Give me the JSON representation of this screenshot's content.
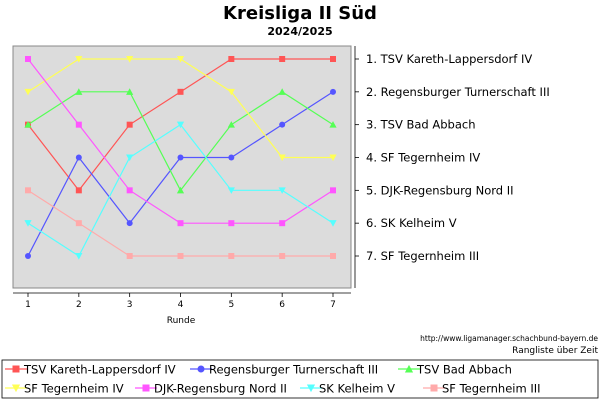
{
  "chart_data": {
    "type": "line",
    "title": "Kreisliga II Süd",
    "subtitle": "2024/2025",
    "xlabel": "Runde",
    "ylabel": "",
    "x": [
      1,
      2,
      3,
      4,
      5,
      6,
      7
    ],
    "ylim": [
      1,
      7
    ],
    "y_inverted": true,
    "grid": false,
    "right_axis_labels": [
      "1. TSV Kareth-Lappersdorf IV",
      "2. Regensburger Turnerschaft III",
      "3. TSV Bad Abbach",
      "4. SF Tegernheim IV",
      "5. DJK-Regensburg Nord II",
      "6. SK Kelheim V",
      "7. SF Tegernheim III"
    ],
    "source_url": "http://www.ligamanager.schachbund-bayern.de",
    "caption": "Rangliste über Zeit",
    "legend_position": "bottom",
    "series": [
      {
        "name": "TSV Kareth-Lappersdorf IV",
        "values": [
          3,
          5,
          3,
          2,
          1,
          1,
          1
        ],
        "color": "#ff5555",
        "marker": "square"
      },
      {
        "name": "Regensburger Turnerschaft III",
        "values": [
          7,
          4,
          6,
          4,
          4,
          3,
          2
        ],
        "color": "#5555ff",
        "marker": "circle"
      },
      {
        "name": "TSV Bad Abbach",
        "values": [
          3,
          2,
          2,
          5,
          3,
          2,
          3
        ],
        "color": "#55ff55",
        "marker": "triangle-up"
      },
      {
        "name": "SF Tegernheim IV",
        "values": [
          2,
          1,
          1,
          1,
          2,
          4,
          4
        ],
        "color": "#ffff55",
        "marker": "triangle-down"
      },
      {
        "name": "DJK-Regensburg Nord II",
        "values": [
          1,
          3,
          5,
          6,
          6,
          6,
          5
        ],
        "color": "#ff55ff",
        "marker": "square"
      },
      {
        "name": "SK Kelheim V",
        "values": [
          6,
          7,
          4,
          3,
          5,
          5,
          6
        ],
        "color": "#55ffff",
        "marker": "triangle-down"
      },
      {
        "name": "SF Tegernheim III",
        "values": [
          5,
          6,
          7,
          7,
          7,
          7,
          7
        ],
        "color": "#ffaaaa",
        "marker": "square"
      }
    ]
  }
}
